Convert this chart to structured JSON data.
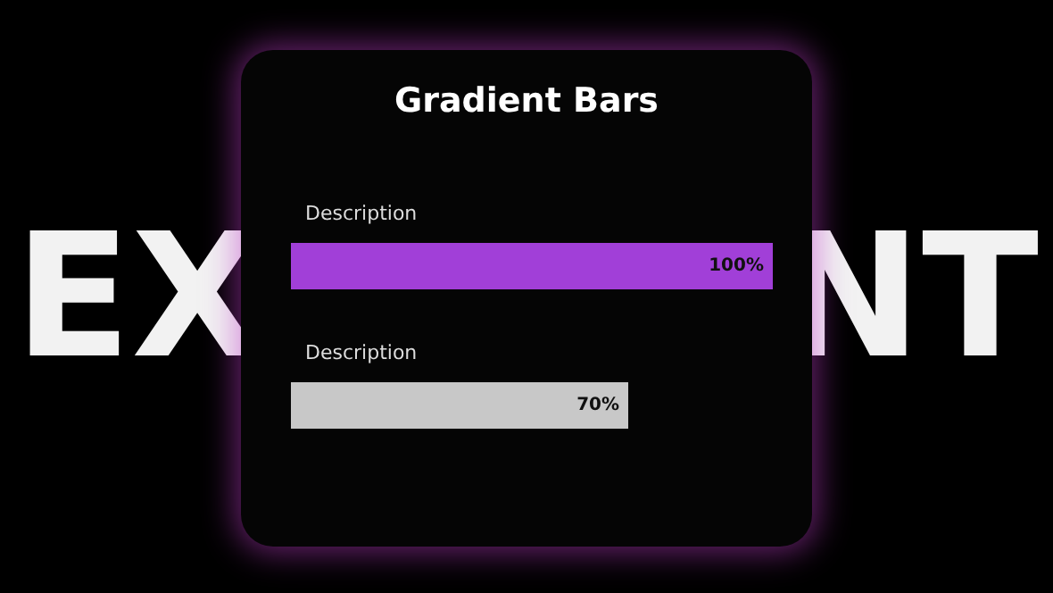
{
  "chart_data": {
    "type": "bar",
    "orientation": "horizontal",
    "title": "Gradient Bars",
    "categories": [
      "Description",
      "Description"
    ],
    "values": [
      100,
      70
    ],
    "colors": [
      "#a13fd8",
      "#c8c8c8"
    ],
    "value_labels": [
      "100%",
      "70%"
    ],
    "annotations": [
      "EX",
      "NT"
    ]
  }
}
